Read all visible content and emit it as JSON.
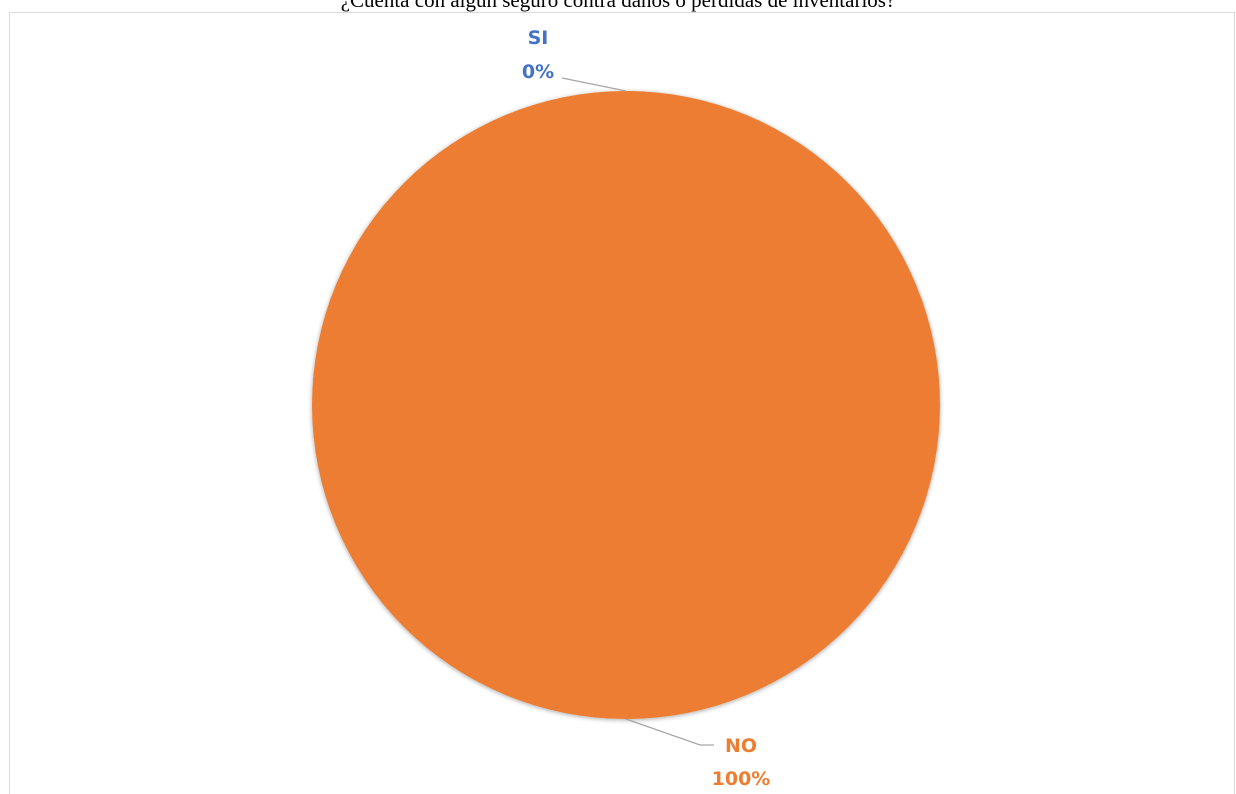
{
  "chart_data": {
    "type": "pie",
    "title": "¿Cuenta con algún seguro contra daños o perdidas de inventarios?",
    "slices": [
      {
        "label": "SI",
        "value": 0,
        "percent_label": "0%",
        "color": "#4472C4"
      },
      {
        "label": "NO",
        "value": 100,
        "percent_label": "100%",
        "color": "#ED7D31"
      }
    ],
    "data_labels": "outside with leader lines",
    "legend": "none"
  }
}
